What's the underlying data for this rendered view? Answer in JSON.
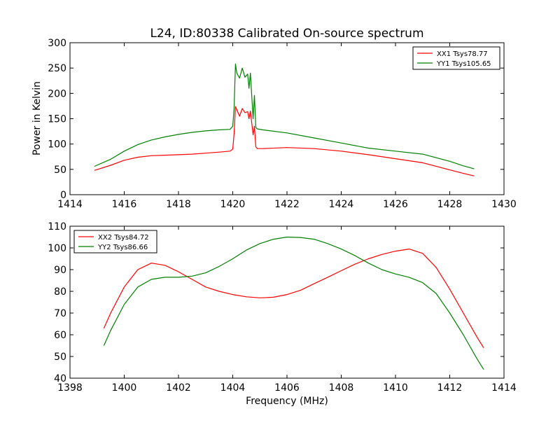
{
  "figure": {
    "title": "L24, ID:80338 Calibrated On-source spectrum",
    "xlabel": "Frequency (MHz)",
    "ylabel": "Power in Kelvin"
  },
  "chart_data": [
    {
      "type": "line",
      "xlim": [
        1414,
        1430
      ],
      "ylim": [
        0,
        300
      ],
      "xticks": [
        1414,
        1416,
        1418,
        1420,
        1422,
        1424,
        1426,
        1428,
        1430
      ],
      "yticks": [
        0,
        50,
        100,
        150,
        200,
        250,
        300
      ],
      "legend_position": "top-right",
      "grid": false,
      "series": [
        {
          "name": "XX1 Tsys78.77",
          "color": "#ff0000",
          "x": [
            1414.9,
            1415.5,
            1416,
            1416.5,
            1417,
            1417.5,
            1418,
            1418.5,
            1419,
            1419.5,
            1419.9,
            1420.0,
            1420.05,
            1420.1,
            1420.15,
            1420.25,
            1420.35,
            1420.45,
            1420.55,
            1420.6,
            1420.65,
            1420.75,
            1420.8,
            1420.85,
            1420.9,
            1421.1,
            1422,
            1423,
            1424,
            1425,
            1426,
            1427,
            1428,
            1428.5,
            1428.9
          ],
          "y": [
            48,
            58,
            68,
            74,
            77,
            78,
            79,
            80,
            82,
            84,
            86,
            90,
            120,
            174,
            168,
            155,
            170,
            162,
            164,
            150,
            165,
            118,
            135,
            95,
            91,
            91,
            93,
            91,
            86,
            79,
            71,
            63,
            49,
            42,
            37
          ]
        },
        {
          "name": "YY1 Tsys105.65",
          "color": "#008000",
          "x": [
            1414.9,
            1415.5,
            1416,
            1416.5,
            1417,
            1417.5,
            1418,
            1418.5,
            1419,
            1419.5,
            1419.9,
            1420.0,
            1420.05,
            1420.1,
            1420.15,
            1420.25,
            1420.35,
            1420.45,
            1420.55,
            1420.6,
            1420.65,
            1420.75,
            1420.8,
            1420.85,
            1420.9,
            1421.1,
            1422,
            1423,
            1424,
            1425,
            1426,
            1427,
            1428,
            1428.5,
            1428.9
          ],
          "y": [
            56,
            70,
            86,
            99,
            108,
            114,
            119,
            123,
            126,
            128,
            129,
            135,
            170,
            258,
            240,
            230,
            250,
            232,
            238,
            210,
            240,
            150,
            196,
            133,
            130,
            128,
            122,
            112,
            102,
            92,
            86,
            80,
            66,
            57,
            51
          ]
        }
      ]
    },
    {
      "type": "line",
      "xlim": [
        1398,
        1414
      ],
      "ylim": [
        40,
        110
      ],
      "xticks": [
        1398,
        1400,
        1402,
        1404,
        1406,
        1408,
        1410,
        1412,
        1414
      ],
      "yticks": [
        40,
        50,
        60,
        70,
        80,
        90,
        100,
        110
      ],
      "legend_position": "top-left",
      "grid": false,
      "series": [
        {
          "name": "XX2 Tsys84.72",
          "color": "#ff0000",
          "x": [
            1399.25,
            1399.5,
            1400,
            1400.5,
            1401,
            1401.5,
            1402,
            1402.5,
            1403,
            1403.5,
            1404,
            1404.5,
            1405,
            1405.5,
            1406,
            1406.5,
            1407,
            1407.5,
            1408,
            1408.5,
            1409,
            1409.5,
            1410,
            1410.5,
            1411,
            1411.5,
            1412,
            1412.5,
            1413,
            1413.25
          ],
          "y": [
            63,
            70,
            82,
            90,
            93,
            92,
            89,
            85.5,
            82,
            80,
            78.5,
            77.5,
            77,
            77.3,
            78.5,
            80.5,
            83.5,
            86.5,
            89.5,
            92.5,
            95,
            97,
            98.5,
            99.5,
            97.5,
            91,
            81,
            70,
            59,
            54
          ]
        },
        {
          "name": "YY2 Tsys86.66",
          "color": "#008000",
          "x": [
            1399.25,
            1399.5,
            1400,
            1400.5,
            1401,
            1401.5,
            1402,
            1402.5,
            1403,
            1403.5,
            1404,
            1404.5,
            1405,
            1405.5,
            1406,
            1406.5,
            1407,
            1407.5,
            1408,
            1408.5,
            1409,
            1409.5,
            1410,
            1410.5,
            1411,
            1411.5,
            1412,
            1412.5,
            1413,
            1413.25
          ],
          "y": [
            55,
            62,
            74,
            82,
            85.5,
            86.5,
            86.5,
            87,
            88.5,
            91.5,
            95,
            99,
            102,
            104,
            105,
            104.8,
            104,
            102,
            99.5,
            96.5,
            93,
            90,
            88,
            86.5,
            84,
            79,
            70,
            60,
            49,
            44
          ]
        }
      ]
    }
  ]
}
